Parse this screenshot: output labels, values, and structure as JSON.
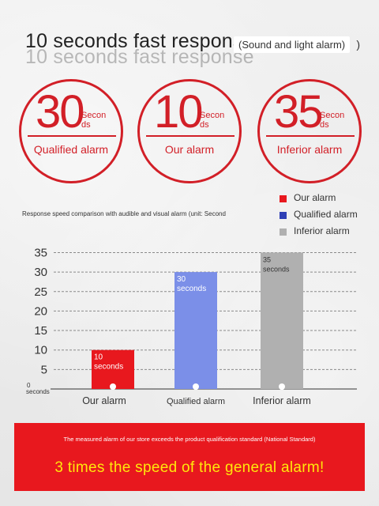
{
  "title": {
    "main": "10 seconds fast response",
    "tag": "(Sound and light alarm)",
    "tag_end": ")"
  },
  "badges": [
    {
      "value": "30",
      "unit": "Seconds",
      "caption": "Qualified alarm"
    },
    {
      "value": "10",
      "unit": "Seconds",
      "caption": "Our alarm"
    },
    {
      "value": "35",
      "unit": "Seconds",
      "caption": "Inferior alarm"
    }
  ],
  "legend": [
    {
      "label": "Our alarm",
      "color": "#e8181e"
    },
    {
      "label": "Qualified alarm",
      "color": "#2e3fb5"
    },
    {
      "label": "Inferior alarm",
      "color": "#b0b0b0"
    }
  ],
  "chart_caption": "Response speed comparison with audible and visual alarm (unit: Second",
  "chart_data": {
    "type": "bar",
    "categories": [
      "Our alarm",
      "Qualified alarm",
      "Inferior alarm"
    ],
    "values": [
      10,
      30,
      35
    ],
    "data_labels": [
      "10 seconds",
      "30 seconds",
      "35 seconds"
    ],
    "colors": [
      "#e8181e",
      "#7b8fe8",
      "#b0b0b0"
    ],
    "ylim": [
      0,
      35
    ],
    "yticks": [
      "35",
      "30",
      "25",
      "20",
      "15",
      "10",
      "5"
    ],
    "zero_label": "0 seconds",
    "grid": true
  },
  "banner": {
    "small": "The measured alarm of our store exceeds the product qualification standard (National Standard)",
    "big": "3 times the speed of the general alarm!"
  }
}
